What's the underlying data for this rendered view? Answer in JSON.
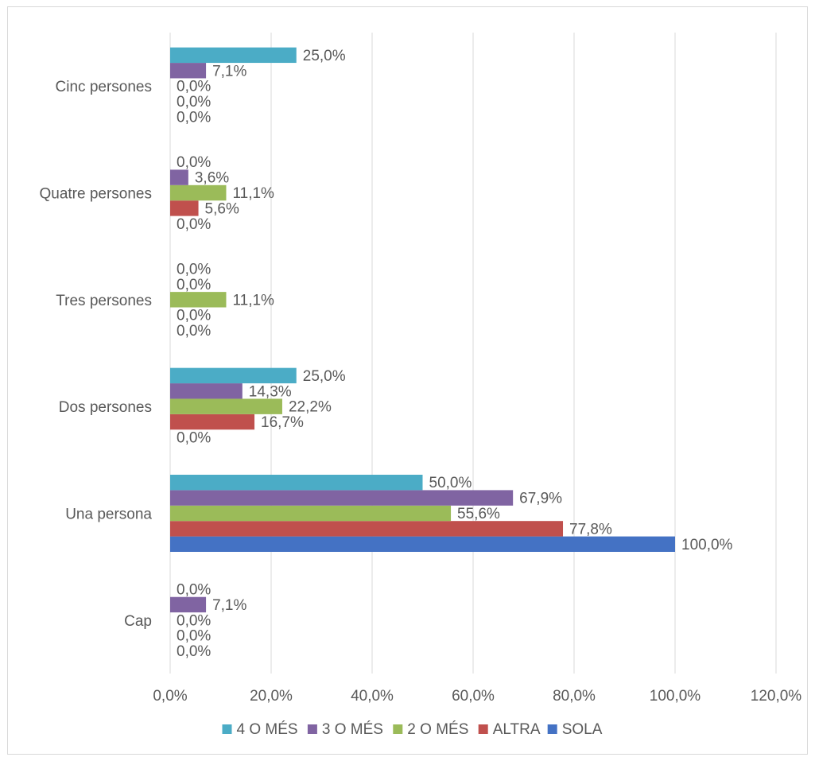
{
  "chart_data": {
    "type": "bar",
    "orientation": "horizontal",
    "categories": [
      "Cap",
      "Una persona",
      "Dos persones",
      "Tres persones",
      "Quatre persones",
      "Cinc persones"
    ],
    "series": [
      {
        "name": "SOLA",
        "color": "#4472C4",
        "values": [
          0.0,
          100.0,
          0.0,
          0.0,
          0.0,
          0.0
        ],
        "labels": [
          "0,0%",
          "100,0%",
          "0,0%",
          "0,0%",
          "0,0%",
          "0,0%"
        ]
      },
      {
        "name": "ALTRA",
        "color": "#C0504D",
        "values": [
          0.0,
          77.8,
          16.7,
          0.0,
          5.6,
          0.0
        ],
        "labels": [
          "0,0%",
          "77,8%",
          "16,7%",
          "0,0%",
          "5,6%",
          "0,0%"
        ]
      },
      {
        "name": "2 O MÉS",
        "color": "#9BBB59",
        "values": [
          0.0,
          55.6,
          22.2,
          11.1,
          11.1,
          0.0
        ],
        "labels": [
          "0,0%",
          "55,6%",
          "22,2%",
          "11,1%",
          "11,1%",
          "0,0%"
        ]
      },
      {
        "name": "3 O MÉS",
        "color": "#8064A2",
        "values": [
          7.1,
          67.9,
          14.3,
          0.0,
          3.6,
          7.1
        ],
        "labels": [
          "7,1%",
          "67,9%",
          "14,3%",
          "0,0%",
          "3,6%",
          "7,1%"
        ]
      },
      {
        "name": "4 O MÉS",
        "color": "#4BACC6",
        "values": [
          0.0,
          50.0,
          25.0,
          0.0,
          0.0,
          25.0
        ],
        "labels": [
          "0,0%",
          "50,0%",
          "25,0%",
          "0,0%",
          "0,0%",
          "25,0%"
        ]
      }
    ],
    "xlim": [
      0,
      120
    ],
    "xticks": [
      "0,0%",
      "20,0%",
      "40,0%",
      "60,0%",
      "80,0%",
      "100,0%",
      "120,0%"
    ],
    "title": "",
    "xlabel": "",
    "ylabel": "",
    "grid": "vertical",
    "legend": {
      "position": "bottom",
      "order": [
        "4 O MÉS",
        "3 O MÉS",
        "2 O MÉS",
        "ALTRA",
        "SOLA"
      ]
    },
    "colors": {
      "grid": "#d9d9d9",
      "text": "#595959"
    }
  }
}
